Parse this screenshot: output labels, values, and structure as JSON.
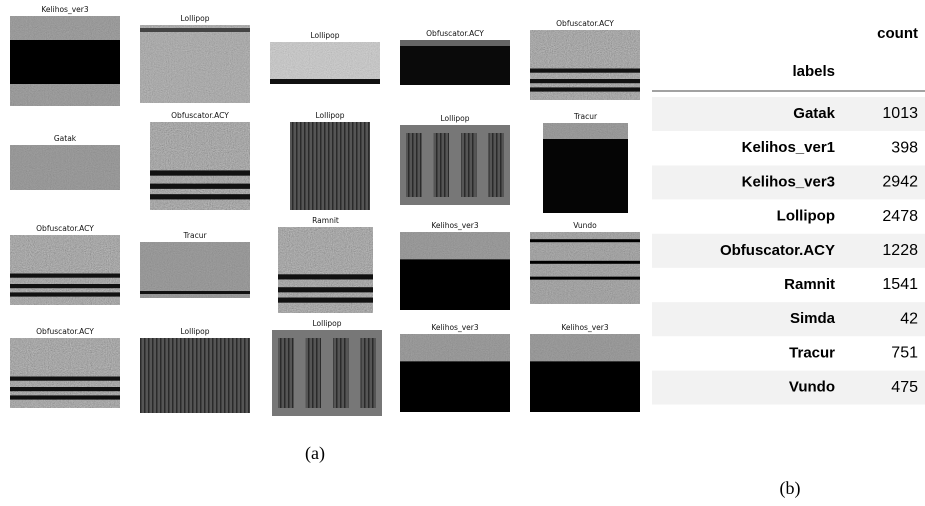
{
  "panel_a": {
    "images": [
      {
        "label": "Kelihos_ver3"
      },
      {
        "label": "Lollipop"
      },
      {
        "label": "Lollipop"
      },
      {
        "label": "Obfuscator.ACY"
      },
      {
        "label": "Obfuscator.ACY"
      },
      {
        "label": "Gatak"
      },
      {
        "label": "Obfuscator.ACY"
      },
      {
        "label": "Lollipop"
      },
      {
        "label": "Lollipop"
      },
      {
        "label": "Tracur"
      },
      {
        "label": "Obfuscator.ACY"
      },
      {
        "label": "Tracur"
      },
      {
        "label": "Ramnit"
      },
      {
        "label": "Kelihos_ver3"
      },
      {
        "label": "Vundo"
      },
      {
        "label": "Obfuscator.ACY"
      },
      {
        "label": "Lollipop"
      },
      {
        "label": "Lollipop"
      },
      {
        "label": "Kelihos_ver3"
      },
      {
        "label": "Kelihos_ver3"
      }
    ],
    "caption": "(a)"
  },
  "panel_b": {
    "table": {
      "column": "count",
      "index_name": "labels",
      "rows": [
        [
          "Gatak",
          1013
        ],
        [
          "Kelihos_ver1",
          398
        ],
        [
          "Kelihos_ver3",
          2942
        ],
        [
          "Lollipop",
          2478
        ],
        [
          "Obfuscator.ACY",
          1228
        ],
        [
          "Ramnit",
          1541
        ],
        [
          "Simda",
          42
        ],
        [
          "Tracur",
          751
        ],
        [
          "Vundo",
          475
        ]
      ]
    },
    "caption": "(b)"
  }
}
